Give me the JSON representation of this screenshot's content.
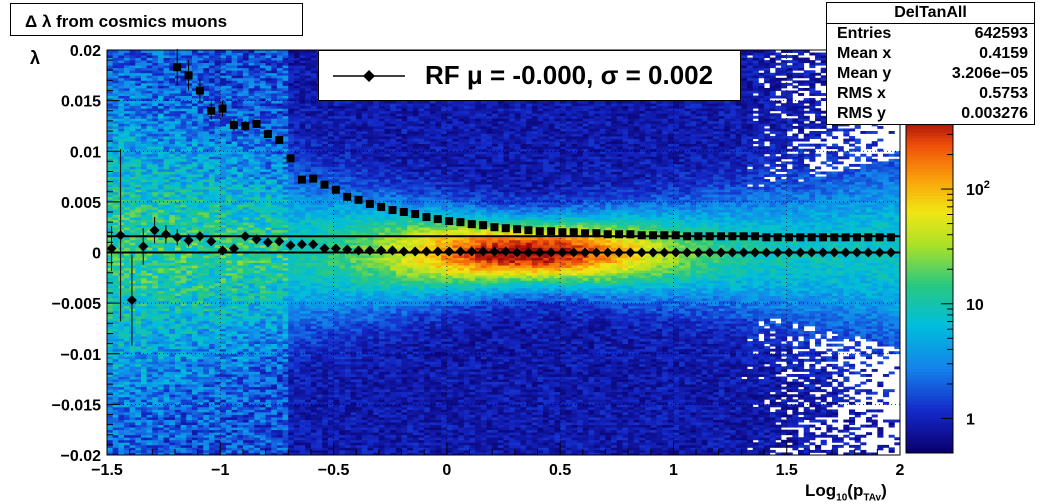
{
  "chart_data": {
    "type": "heatmap",
    "title": "Δ λ from cosmics muons",
    "xlabel": "Log10(pTAv)",
    "ylabel": "λ",
    "xlim": [
      -1.5,
      2.0
    ],
    "ylim": [
      -0.02,
      0.02
    ],
    "x_ticks": [
      "−1.5",
      "−1",
      "−0.5",
      "0",
      "0.5",
      "1",
      "1.5",
      "2"
    ],
    "y_ticks": [
      "0.02",
      "0.015",
      "0.01",
      "0.005",
      "0",
      "−0.005",
      "−0.01",
      "−0.015",
      "−0.02"
    ],
    "z_scale": "log",
    "z_ticks": [
      "10^2",
      "10",
      "1"
    ],
    "grid": true,
    "series": [
      {
        "name": "RF",
        "marker": "diamond",
        "x": [
          -1.48,
          -1.44,
          -1.39,
          -1.34,
          -1.29,
          -1.24,
          -1.19,
          -1.14,
          -1.09,
          -1.04,
          -0.99,
          -0.94,
          -0.89,
          -0.84,
          -0.79,
          -0.74,
          -0.69,
          -0.64,
          -0.59,
          -0.54,
          -0.49,
          -0.44,
          -0.39,
          -0.34,
          -0.29,
          -0.24,
          -0.19,
          -0.14,
          -0.09,
          -0.04,
          0.01,
          0.06,
          0.11,
          0.16,
          0.21,
          0.26,
          0.31,
          0.36,
          0.41,
          0.46,
          0.51,
          0.56,
          0.61,
          0.66,
          0.71,
          0.76,
          0.81,
          0.86,
          0.91,
          0.96,
          1.01,
          1.06,
          1.11,
          1.16,
          1.21,
          1.26,
          1.31,
          1.36,
          1.41,
          1.46,
          1.51,
          1.56,
          1.61,
          1.66,
          1.71,
          1.76,
          1.81,
          1.86,
          1.91,
          1.96
        ],
        "y": [
          0.0004,
          0.0017,
          -0.0047,
          0.0006,
          0.0022,
          0.0018,
          0.0015,
          0.0012,
          0.0016,
          0.0011,
          0.0002,
          0.0004,
          0.0016,
          0.0013,
          0.001,
          0.0011,
          0.0007,
          0.0008,
          0.0008,
          0.0004,
          0.0004,
          0.0003,
          0.0002,
          0.0002,
          0.0002,
          0.0002,
          0.0001,
          0.0001,
          0.0001,
          0.0001,
          0.0001,
          0.0001,
          0.0001,
          0.0001,
          0.0001,
          0.0001,
          0.0,
          0.0,
          0.0,
          0.0,
          0.0,
          0.0,
          0.0,
          0.0,
          0.0,
          0.0,
          0.0,
          0.0,
          0.0,
          0.0,
          0.0,
          0.0,
          0.0,
          0.0,
          0.0,
          0.0,
          0.0,
          0.0,
          0.0,
          0.0,
          0.0,
          0.0,
          0.0,
          0.0,
          0.0,
          0.0,
          0.0,
          0.0,
          0.0,
          0.0
        ],
        "yerr": [
          0.0022,
          0.0085,
          0.0045,
          0.0018,
          0.0013,
          0.0009,
          0.0008,
          0.0006,
          0.0005,
          0.0004,
          0.0004,
          0.0003,
          0.0003,
          0.0003,
          0.0002,
          0.0002,
          0.0002,
          0.0002,
          0.0001,
          0.0001,
          0.0001,
          0.0001,
          0.0001,
          0.0001,
          0.0001,
          0.0001,
          0.0001,
          0.0001,
          0.0001,
          0.0001,
          0.0001,
          0.0001,
          0.0001,
          0.0001,
          0.0001,
          0.0001,
          0.0001,
          0.0001,
          0.0001,
          0.0001,
          0.0001,
          0.0001,
          0.0001,
          0.0001,
          0.0001,
          0.0001,
          0.0001,
          0.0001,
          0.0001,
          0.0001,
          0.0001,
          0.0001,
          0.0001,
          0.0001,
          0.0001,
          0.0001,
          0.0001,
          0.0001,
          0.0001,
          0.0001,
          0.0001,
          0.0001,
          0.0001,
          0.0001,
          0.0001,
          0.0001,
          0.0001,
          0.0001,
          0.0001,
          0.0001
        ]
      },
      {
        "name": "",
        "marker": "square",
        "x": [
          -1.19,
          -1.14,
          -1.09,
          -1.04,
          -0.99,
          -0.94,
          -0.89,
          -0.84,
          -0.79,
          -0.74,
          -0.69,
          -0.64,
          -0.59,
          -0.54,
          -0.49,
          -0.44,
          -0.39,
          -0.34,
          -0.29,
          -0.24,
          -0.19,
          -0.14,
          -0.09,
          -0.04,
          0.01,
          0.06,
          0.11,
          0.16,
          0.21,
          0.26,
          0.31,
          0.36,
          0.41,
          0.46,
          0.51,
          0.56,
          0.61,
          0.66,
          0.71,
          0.76,
          0.81,
          0.86,
          0.91,
          0.96,
          1.01,
          1.06,
          1.11,
          1.16,
          1.21,
          1.26,
          1.31,
          1.36,
          1.41,
          1.46,
          1.51,
          1.56,
          1.61,
          1.66,
          1.71,
          1.76,
          1.81,
          1.86,
          1.91,
          1.96
        ],
        "y": [
          0.0183,
          0.0175,
          0.016,
          0.014,
          0.0142,
          0.0126,
          0.0125,
          0.0127,
          0.0117,
          0.0111,
          0.0093,
          0.0072,
          0.0073,
          0.0067,
          0.0062,
          0.0055,
          0.0052,
          0.0048,
          0.0045,
          0.0042,
          0.004,
          0.0038,
          0.0035,
          0.0033,
          0.0031,
          0.003,
          0.0028,
          0.0027,
          0.0025,
          0.0024,
          0.0023,
          0.0022,
          0.0021,
          0.0021,
          0.002,
          0.002,
          0.0019,
          0.0019,
          0.0018,
          0.0018,
          0.0018,
          0.0017,
          0.0017,
          0.0017,
          0.0017,
          0.0016,
          0.0016,
          0.0016,
          0.0016,
          0.0016,
          0.0016,
          0.0016,
          0.0015,
          0.0015,
          0.0015,
          0.0015,
          0.0015,
          0.0015,
          0.0015,
          0.0015,
          0.0015,
          0.0015,
          0.0015,
          0.0015
        ],
        "yerr": [
          0.0018,
          0.0015,
          0.0011,
          0.0009,
          0.0008,
          0.0006,
          0.0005,
          0.0004,
          0.0004,
          0.0003,
          0.0003,
          0.0002,
          0.0002,
          0.0002,
          0.0002,
          0.0001,
          0.0001,
          0.0001,
          0.0001,
          0.0001,
          0.0001,
          0.0001,
          0.0001,
          0.0001,
          0.0001,
          0.0001,
          0.0001,
          0.0001,
          0.0001,
          0.0001,
          0.0001,
          0.0001,
          0.0001,
          0.0001,
          0.0001,
          0.0001,
          0.0001,
          0.0001,
          0.0001,
          0.0001,
          0.0001,
          0.0001,
          0.0001,
          0.0001,
          0.0001,
          0.0001,
          0.0001,
          0.0001,
          0.0001,
          0.0001,
          0.0001,
          0.0001,
          0.0001,
          0.0001,
          0.0001,
          0.0001,
          0.0001,
          0.0001,
          0.0001,
          0.0001,
          0.0001,
          0.0001,
          0.0001,
          0.0001
        ]
      }
    ],
    "fit_lines": [
      {
        "y": 0.0,
        "label": "RF"
      },
      {
        "y": 0.0016
      }
    ],
    "legend": {
      "entry": "RF μ = -0.000, σ =   0.002",
      "position": "top-center"
    },
    "stats": {
      "name": "DelTanAll",
      "rows": [
        {
          "key": "Entries",
          "value": "642593"
        },
        {
          "key": "Mean x",
          "value": "0.4159"
        },
        {
          "key": "Mean y",
          "value": "3.206e−05"
        },
        {
          "key": "RMS x",
          "value": "0.5753"
        },
        {
          "key": "RMS y",
          "value": "0.003276"
        }
      ]
    }
  }
}
